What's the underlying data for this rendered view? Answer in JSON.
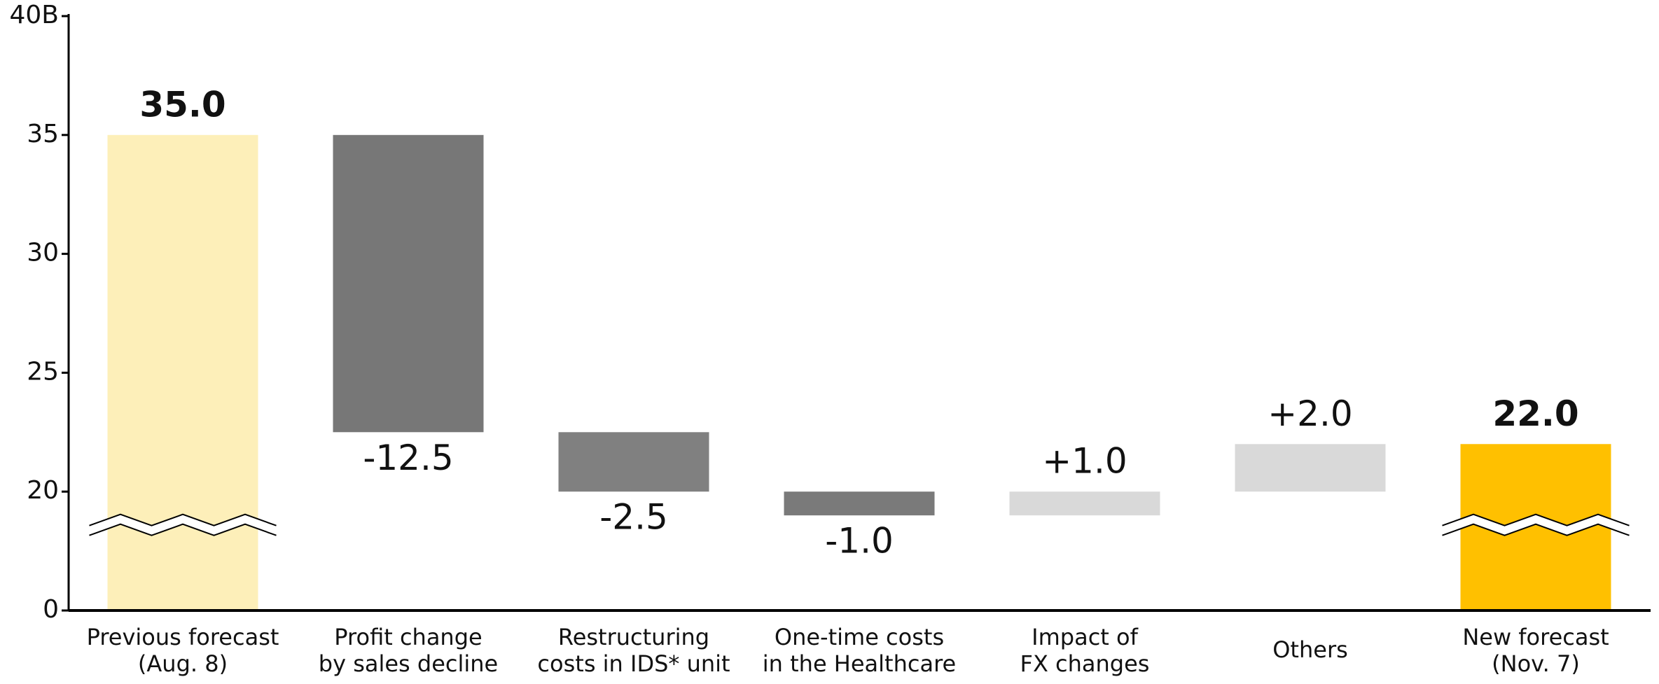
{
  "chart_data": {
    "type": "waterfall",
    "categories": [
      [
        "Previous forecast",
        "(Aug. 8)"
      ],
      [
        "Profit change",
        "by sales decline"
      ],
      [
        "Restructuring",
        "costs in IDS* unit"
      ],
      [
        "One-time costs",
        "in the Healthcare"
      ],
      [
        "Impact of",
        "FX changes"
      ],
      [
        "Others"
      ],
      [
        "New forecast",
        "(Nov. 7)"
      ]
    ],
    "values": [
      35.0,
      -12.5,
      -2.5,
      -1.0,
      1.0,
      2.0,
      22.0
    ],
    "value_labels": [
      "35.0",
      "-12.5",
      "-2.5",
      "-1.0",
      "+1.0",
      "+2.0",
      "22.0"
    ],
    "totals": [
      0,
      6
    ],
    "colors": [
      "#fdefb9",
      "#777777",
      "#808080",
      "#7a7a7a",
      "#d9d9d9",
      "#d9d9d9",
      "#ffc000"
    ],
    "ylim": [
      0,
      40
    ],
    "y_break": [
      0,
      15
    ],
    "yticks": [
      0,
      20,
      25,
      30,
      35,
      {
        "value": 40,
        "label": "40B"
      }
    ]
  }
}
